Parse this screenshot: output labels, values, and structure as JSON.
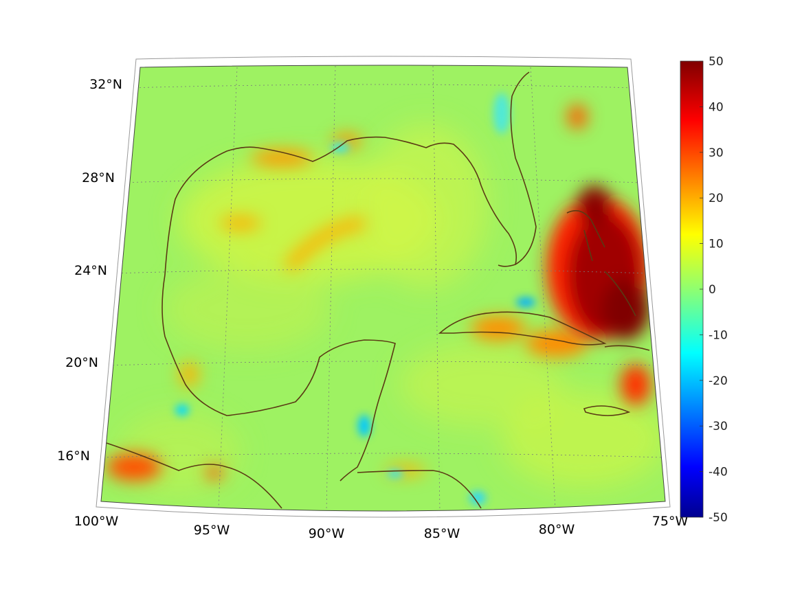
{
  "map": {
    "projection": "lambert-conic",
    "lat_ticks": [
      "32°N",
      "28°N",
      "24°N",
      "20°N",
      "16°N"
    ],
    "lon_ticks": [
      "100°W",
      "95°W",
      "90°W",
      "85°W",
      "80°W",
      "75°W"
    ],
    "grid": true,
    "field_colors": {
      "background_field": "#9ef262",
      "coastline": "#5a3a14",
      "gridline": "#888888"
    },
    "hotspots_description_free": true
  },
  "colorbar": {
    "colormap": "jet",
    "ticks": [
      "50",
      "40",
      "30",
      "20",
      "10",
      "0",
      "-10",
      "-20",
      "-30",
      "-40",
      "-50"
    ],
    "range": [
      -50,
      50
    ]
  }
}
